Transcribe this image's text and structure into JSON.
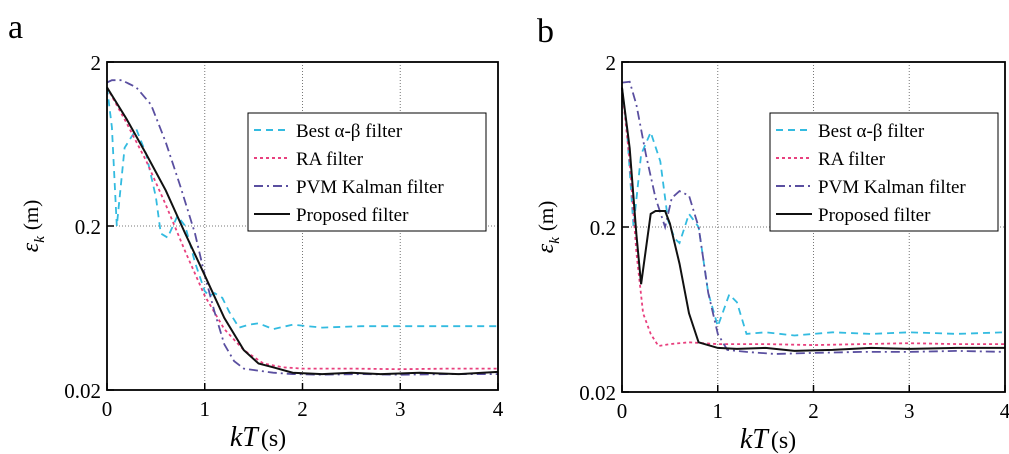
{
  "chart_data": [
    {
      "panel": "a",
      "type": "line",
      "xlabel_main": "kT",
      "xlabel_unit": "(s)",
      "ylabel_main": "ε",
      "ylabel_sub": "k",
      "ylabel_unit": "(m)",
      "xlim": [
        0,
        4
      ],
      "ylim": [
        0.02,
        2
      ],
      "yscale": "log",
      "xticks": [
        "0",
        "1",
        "2",
        "3",
        "4"
      ],
      "yticks": [
        "0.02",
        "0.2",
        "2"
      ],
      "grid": true,
      "legend_position": "top-right",
      "series": [
        {
          "name": "Best α-β filter",
          "color": "#33bbe0",
          "dash": "7,5",
          "points": [
            [
              0,
              1.4
            ],
            [
              0.05,
              0.8
            ],
            [
              0.1,
              0.2
            ],
            [
              0.18,
              0.6
            ],
            [
              0.3,
              0.78
            ],
            [
              0.4,
              0.55
            ],
            [
              0.5,
              0.3
            ],
            [
              0.55,
              0.18
            ],
            [
              0.62,
              0.17
            ],
            [
              0.72,
              0.23
            ],
            [
              0.8,
              0.2
            ],
            [
              0.9,
              0.12
            ],
            [
              1.0,
              0.08
            ],
            [
              1.05,
              0.075
            ],
            [
              1.1,
              0.078
            ],
            [
              1.18,
              0.073
            ],
            [
              1.25,
              0.06
            ],
            [
              1.35,
              0.048
            ],
            [
              1.45,
              0.05
            ],
            [
              1.55,
              0.051
            ],
            [
              1.7,
              0.047
            ],
            [
              1.9,
              0.05
            ],
            [
              2.2,
              0.048
            ],
            [
              2.6,
              0.049
            ],
            [
              3.0,
              0.049
            ],
            [
              3.5,
              0.049
            ],
            [
              4.0,
              0.049
            ]
          ]
        },
        {
          "name": "RA filter",
          "color": "#e8407e",
          "dash": "3,3",
          "points": [
            [
              0,
              1.4
            ],
            [
              0.2,
              0.85
            ],
            [
              0.4,
              0.5
            ],
            [
              0.6,
              0.27
            ],
            [
              0.8,
              0.14
            ],
            [
              1.0,
              0.075
            ],
            [
              1.2,
              0.047
            ],
            [
              1.4,
              0.035
            ],
            [
              1.6,
              0.029
            ],
            [
              1.8,
              0.0275
            ],
            [
              2.0,
              0.027
            ],
            [
              2.5,
              0.027
            ],
            [
              3.0,
              0.0268
            ],
            [
              3.5,
              0.027
            ],
            [
              4.0,
              0.027
            ]
          ]
        },
        {
          "name": "PVM Kalman filter",
          "color": "#5a4fa0",
          "dash": "9,4,2,4",
          "points": [
            [
              0,
              1.5
            ],
            [
              0.05,
              1.55
            ],
            [
              0.15,
              1.55
            ],
            [
              0.3,
              1.4
            ],
            [
              0.45,
              1.1
            ],
            [
              0.6,
              0.65
            ],
            [
              0.75,
              0.35
            ],
            [
              0.9,
              0.18
            ],
            [
              1.0,
              0.1
            ],
            [
              1.1,
              0.06
            ],
            [
              1.2,
              0.038
            ],
            [
              1.3,
              0.03
            ],
            [
              1.4,
              0.027
            ],
            [
              1.5,
              0.0265
            ],
            [
              1.7,
              0.0255
            ],
            [
              1.9,
              0.025
            ],
            [
              2.2,
              0.0248
            ],
            [
              2.6,
              0.025
            ],
            [
              3.0,
              0.0248
            ],
            [
              3.5,
              0.025
            ],
            [
              4.0,
              0.025
            ]
          ]
        },
        {
          "name": "Proposed filter",
          "color": "#111111",
          "dash": "",
          "points": [
            [
              0,
              1.4
            ],
            [
              0.2,
              0.9
            ],
            [
              0.4,
              0.55
            ],
            [
              0.6,
              0.33
            ],
            [
              0.8,
              0.18
            ],
            [
              1.0,
              0.1
            ],
            [
              1.2,
              0.055
            ],
            [
              1.4,
              0.035
            ],
            [
              1.55,
              0.029
            ],
            [
              1.7,
              0.0275
            ],
            [
              1.9,
              0.0255
            ],
            [
              2.2,
              0.025
            ],
            [
              2.5,
              0.0255
            ],
            [
              2.8,
              0.025
            ],
            [
              3.2,
              0.0255
            ],
            [
              3.6,
              0.025
            ],
            [
              4.0,
              0.0258
            ]
          ]
        }
      ]
    },
    {
      "panel": "b",
      "type": "line",
      "xlabel_main": "kT",
      "xlabel_unit": "(s)",
      "ylabel_main": "ε",
      "ylabel_sub": "k",
      "ylabel_unit": "(m)",
      "xlim": [
        0,
        4
      ],
      "ylim": [
        0.02,
        2
      ],
      "yscale": "log",
      "xticks": [
        "0",
        "1",
        "2",
        "3",
        "4"
      ],
      "yticks": [
        "0.02",
        "0.2",
        "2"
      ],
      "grid": true,
      "legend_position": "top-right",
      "series": [
        {
          "name": "Best α-β filter",
          "color": "#33bbe0",
          "dash": "7,5",
          "points": [
            [
              0,
              1.4
            ],
            [
              0.05,
              0.8
            ],
            [
              0.12,
              0.2
            ],
            [
              0.2,
              0.55
            ],
            [
              0.3,
              0.75
            ],
            [
              0.4,
              0.5
            ],
            [
              0.48,
              0.22
            ],
            [
              0.55,
              0.17
            ],
            [
              0.6,
              0.16
            ],
            [
              0.7,
              0.24
            ],
            [
              0.8,
              0.2
            ],
            [
              0.9,
              0.08
            ],
            [
              1.0,
              0.05
            ],
            [
              1.05,
              0.06
            ],
            [
              1.12,
              0.078
            ],
            [
              1.2,
              0.07
            ],
            [
              1.3,
              0.045
            ],
            [
              1.5,
              0.046
            ],
            [
              1.8,
              0.044
            ],
            [
              2.2,
              0.046
            ],
            [
              2.6,
              0.045
            ],
            [
              3.0,
              0.046
            ],
            [
              3.5,
              0.045
            ],
            [
              4.0,
              0.046
            ]
          ]
        },
        {
          "name": "RA filter",
          "color": "#e8407e",
          "dash": "3,3",
          "points": [
            [
              0,
              1.4
            ],
            [
              0.08,
              0.5
            ],
            [
              0.15,
              0.14
            ],
            [
              0.22,
              0.06
            ],
            [
              0.3,
              0.045
            ],
            [
              0.38,
              0.038
            ],
            [
              0.5,
              0.039
            ],
            [
              0.7,
              0.04
            ],
            [
              1.0,
              0.039
            ],
            [
              1.5,
              0.039
            ],
            [
              2.0,
              0.0385
            ],
            [
              2.5,
              0.039
            ],
            [
              3.0,
              0.0395
            ],
            [
              3.5,
              0.039
            ],
            [
              4.0,
              0.039
            ]
          ]
        },
        {
          "name": "PVM Kalman filter",
          "color": "#5a4fa0",
          "dash": "9,4,2,4",
          "points": [
            [
              0,
              1.5
            ],
            [
              0.08,
              1.52
            ],
            [
              0.15,
              1.1
            ],
            [
              0.25,
              0.55
            ],
            [
              0.35,
              0.3
            ],
            [
              0.45,
              0.2
            ],
            [
              0.52,
              0.3
            ],
            [
              0.6,
              0.33
            ],
            [
              0.7,
              0.31
            ],
            [
              0.8,
              0.2
            ],
            [
              0.9,
              0.08
            ],
            [
              1.0,
              0.045
            ],
            [
              1.1,
              0.036
            ],
            [
              1.3,
              0.035
            ],
            [
              1.6,
              0.034
            ],
            [
              2.0,
              0.0345
            ],
            [
              2.5,
              0.035
            ],
            [
              3.0,
              0.035
            ],
            [
              3.5,
              0.0355
            ],
            [
              4.0,
              0.035
            ]
          ]
        },
        {
          "name": "Proposed filter",
          "color": "#111111",
          "dash": "",
          "points": [
            [
              0,
              1.4
            ],
            [
              0.08,
              0.6
            ],
            [
              0.15,
              0.18
            ],
            [
              0.2,
              0.09
            ],
            [
              0.3,
              0.24
            ],
            [
              0.35,
              0.25
            ],
            [
              0.45,
              0.25
            ],
            [
              0.5,
              0.21
            ],
            [
              0.6,
              0.12
            ],
            [
              0.7,
              0.06
            ],
            [
              0.8,
              0.04
            ],
            [
              1.0,
              0.037
            ],
            [
              1.2,
              0.0365
            ],
            [
              1.5,
              0.037
            ],
            [
              1.8,
              0.0355
            ],
            [
              2.2,
              0.036
            ],
            [
              2.6,
              0.037
            ],
            [
              3.0,
              0.0365
            ],
            [
              3.5,
              0.037
            ],
            [
              4.0,
              0.037
            ]
          ]
        }
      ]
    }
  ]
}
